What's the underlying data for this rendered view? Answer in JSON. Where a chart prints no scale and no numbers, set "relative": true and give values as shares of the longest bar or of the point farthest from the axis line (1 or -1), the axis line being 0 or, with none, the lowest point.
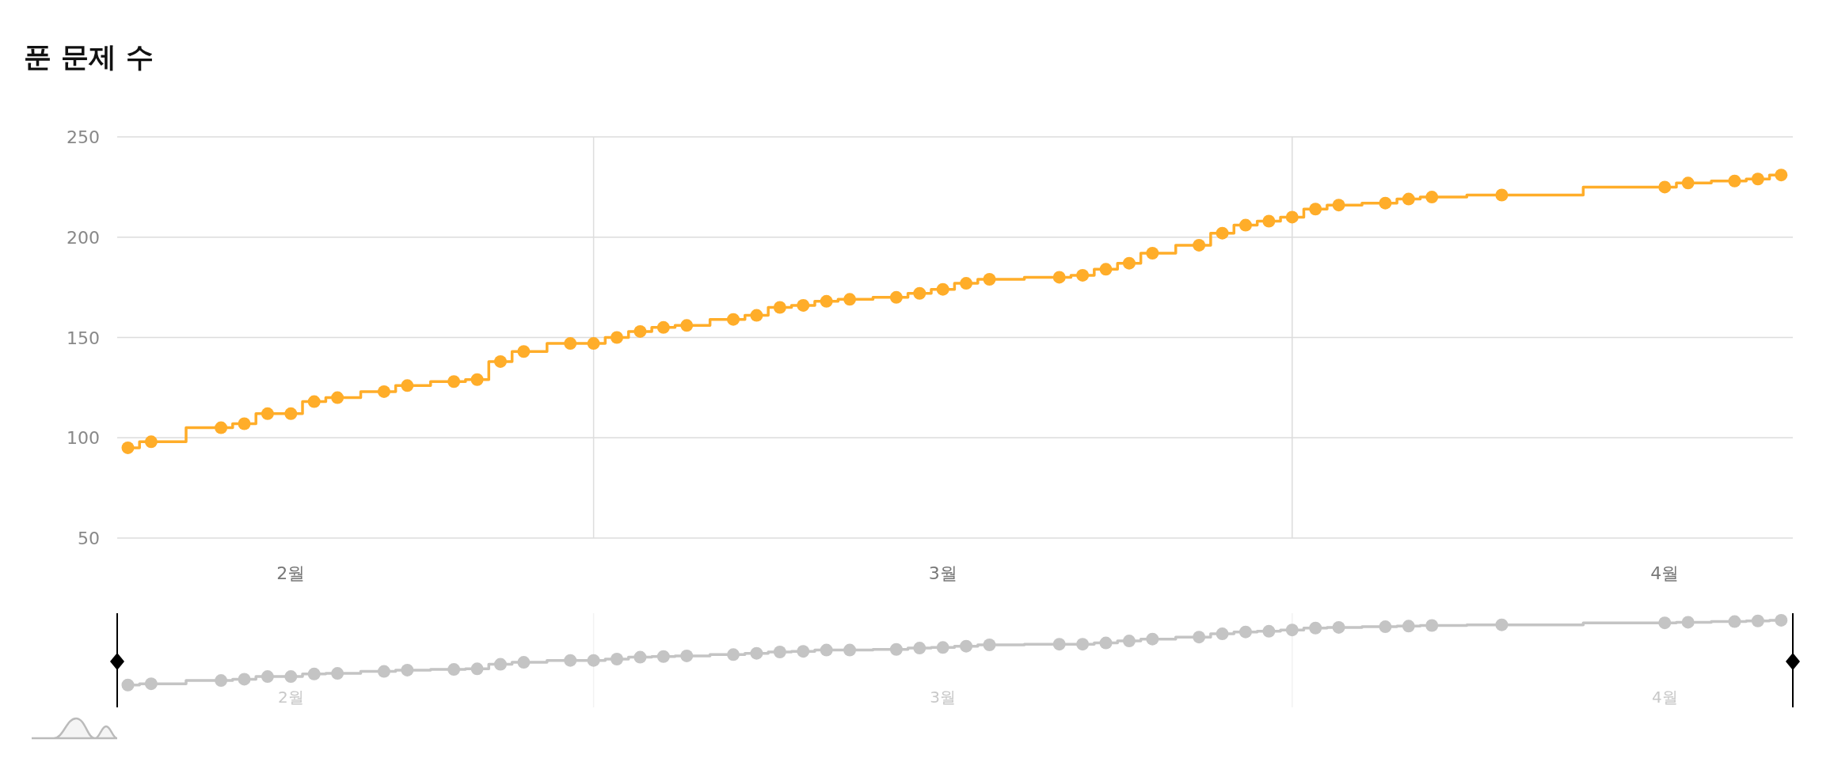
{
  "chart_data": [
    {
      "type": "step",
      "title": "푼 문제 수",
      "color": "#ffad29",
      "marker": "circle",
      "grid": "y",
      "x": [
        "--01-25",
        "--01-26",
        "--01-29",
        "--01-30",
        "--01-31",
        "--02-01",
        "--02-02",
        "--02-03",
        "--02-05",
        "--02-06",
        "--02-08",
        "--02-09",
        "--02-10",
        "--02-11",
        "--02-13",
        "--02-14",
        "--02-15",
        "--02-16",
        "--02-17",
        "--02-18",
        "--02-20",
        "--02-21",
        "--02-22",
        "--02-23",
        "--02-24",
        "--02-25",
        "--02-27",
        "--02-28",
        "--03-01",
        "--03-02",
        "--03-03",
        "--03-06",
        "--03-07",
        "--03-08",
        "--03-09",
        "--03-10",
        "--03-12",
        "--03-13",
        "--03-14",
        "--03-15",
        "--03-16",
        "--03-17",
        "--03-18",
        "--03-20",
        "--03-21",
        "--03-22",
        "--03-25",
        "--04-01",
        "--04-02",
        "--04-04",
        "--04-05",
        "--04-06"
      ],
      "values": [
        95,
        98,
        105,
        107,
        112,
        112,
        118,
        120,
        123,
        126,
        128,
        129,
        138,
        143,
        147,
        147,
        150,
        153,
        155,
        156,
        159,
        161,
        165,
        166,
        168,
        169,
        170,
        172,
        174,
        177,
        179,
        180,
        181,
        184,
        187,
        192,
        196,
        202,
        206,
        208,
        210,
        214,
        216,
        217,
        219,
        220,
        221,
        225,
        227,
        228,
        229,
        231
      ],
      "xlim": [
        "--01-24T13:00",
        "--04-06T12:00"
      ],
      "ylim": [
        50,
        250
      ],
      "yticks": [
        50,
        100,
        150,
        200,
        250
      ],
      "xticks": [
        {
          "value": "--02-01",
          "label": "2월"
        },
        {
          "value": "--03-01",
          "label": "3월"
        },
        {
          "value": "--04-01",
          "label": "4월"
        }
      ],
      "ref_lines": [
        {
          "axis": "x",
          "value": "--02-14",
          "color": "#dddddd"
        },
        {
          "axis": "x",
          "value": "--03-16",
          "color": "#dddddd"
        }
      ]
    },
    {
      "type": "step",
      "color": "#c4c4c4",
      "marker": "circle",
      "relative": true,
      "tick_labels": "x",
      "x": [
        "--01-25",
        "--01-26",
        "--01-29",
        "--01-30",
        "--01-31",
        "--02-01",
        "--02-02",
        "--02-03",
        "--02-05",
        "--02-06",
        "--02-08",
        "--02-09",
        "--02-10",
        "--02-11",
        "--02-13",
        "--02-14",
        "--02-15",
        "--02-16",
        "--02-17",
        "--02-18",
        "--02-20",
        "--02-21",
        "--02-22",
        "--02-23",
        "--02-24",
        "--02-25",
        "--02-27",
        "--02-28",
        "--03-01",
        "--03-02",
        "--03-03",
        "--03-06",
        "--03-07",
        "--03-08",
        "--03-09",
        "--03-10",
        "--03-12",
        "--03-13",
        "--03-14",
        "--03-15",
        "--03-16",
        "--03-17",
        "--03-18",
        "--03-20",
        "--03-21",
        "--03-22",
        "--03-25",
        "--04-01",
        "--04-02",
        "--04-04",
        "--04-05",
        "--04-06"
      ],
      "values": [
        0,
        0.02,
        0.07,
        0.09,
        0.13,
        0.13,
        0.17,
        0.18,
        0.21,
        0.23,
        0.24,
        0.25,
        0.32,
        0.35,
        0.38,
        0.38,
        0.4,
        0.43,
        0.44,
        0.45,
        0.47,
        0.49,
        0.51,
        0.52,
        0.54,
        0.54,
        0.55,
        0.57,
        0.58,
        0.6,
        0.62,
        0.63,
        0.63,
        0.65,
        0.68,
        0.71,
        0.74,
        0.79,
        0.82,
        0.83,
        0.85,
        0.88,
        0.89,
        0.9,
        0.91,
        0.92,
        0.93,
        0.96,
        0.97,
        0.98,
        0.99,
        1
      ],
      "xlim": [
        "--01-24T13:00",
        "--04-06T12:00"
      ],
      "xticks": [
        {
          "value": "--02-01",
          "label": "2월"
        },
        {
          "value": "--03-01",
          "label": "3월"
        },
        {
          "value": "--04-01",
          "label": "4월"
        }
      ],
      "ref_lines": [
        {
          "axis": "x",
          "value": "--02-14",
          "color": "#f2f2f2"
        },
        {
          "axis": "x",
          "value": "--03-16",
          "color": "#f2f2f2"
        }
      ]
    }
  ]
}
